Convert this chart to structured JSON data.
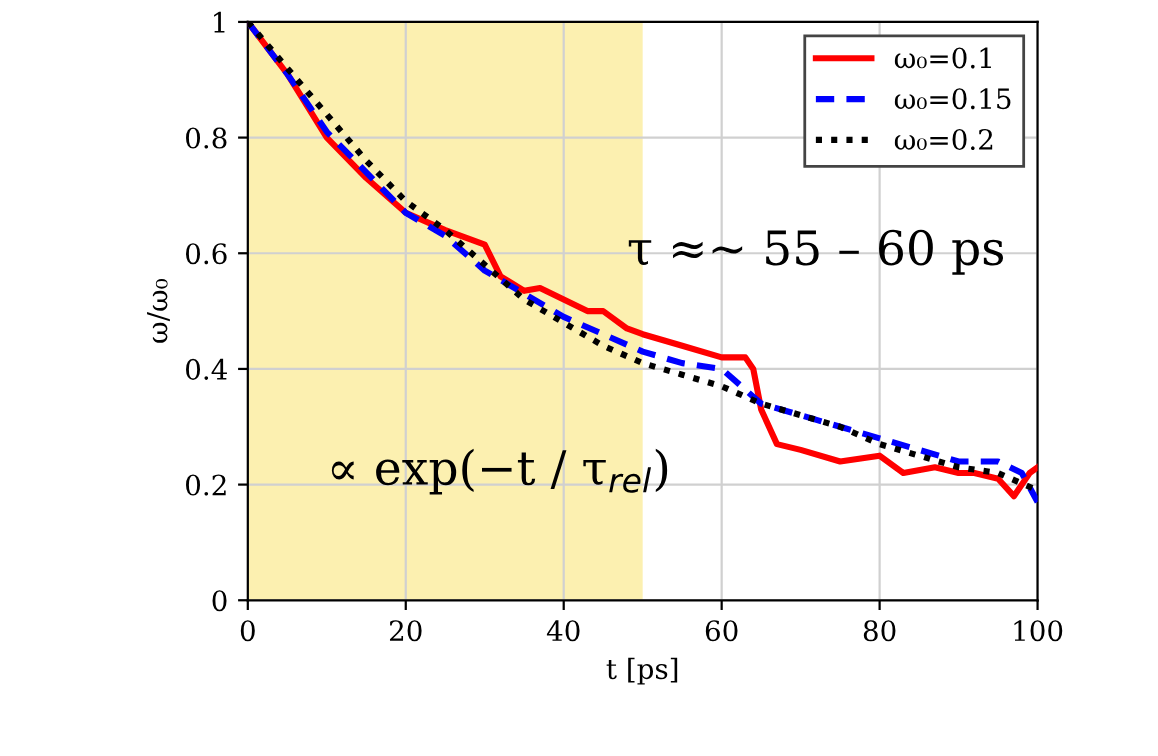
{
  "chart_data": {
    "type": "line",
    "xlabel": "t [ps]",
    "ylabel": "ω/ω₀",
    "xlim": [
      0,
      100
    ],
    "xticks": [
      0,
      20,
      40,
      60,
      80,
      100
    ],
    "ylim": [
      0,
      1
    ],
    "yticks": [
      0,
      0.2,
      0.4,
      0.6,
      0.8,
      1
    ],
    "grid": true,
    "legend": "top right",
    "bands": [
      {
        "axis": "x",
        "from": 0,
        "to": 50,
        "color": "#fcf0b0"
      }
    ],
    "annotations": [
      "τ ≈~ 55 – 60 ps",
      "∝ exp(−t / τ$_{rel}$)"
    ],
    "series": [
      {
        "name": "ω₀=0.1",
        "color": "#ff0000",
        "line_style": "solid",
        "x": [
          0,
          5,
          10,
          15,
          20,
          25,
          30,
          32,
          35,
          37,
          40,
          43,
          45,
          48,
          50,
          55,
          60,
          63,
          64,
          65,
          67,
          70,
          75,
          80,
          83,
          87,
          90,
          92,
          95,
          97,
          99,
          100
        ],
        "values": [
          1,
          0.91,
          0.8,
          0.73,
          0.67,
          0.64,
          0.615,
          0.56,
          0.535,
          0.54,
          0.52,
          0.5,
          0.5,
          0.47,
          0.46,
          0.44,
          0.42,
          0.42,
          0.4,
          0.33,
          0.27,
          0.26,
          0.24,
          0.25,
          0.22,
          0.23,
          0.22,
          0.22,
          0.21,
          0.18,
          0.22,
          0.23
        ]
      },
      {
        "name": "ω₀=0.15",
        "color": "#0000ff",
        "line_style": "dashed",
        "x": [
          0,
          5,
          10,
          15,
          20,
          25,
          30,
          35,
          40,
          45,
          50,
          55,
          60,
          65,
          70,
          75,
          80,
          85,
          90,
          95,
          98,
          100
        ],
        "values": [
          1,
          0.91,
          0.81,
          0.74,
          0.67,
          0.63,
          0.57,
          0.53,
          0.49,
          0.46,
          0.43,
          0.41,
          0.4,
          0.34,
          0.32,
          0.3,
          0.28,
          0.26,
          0.24,
          0.24,
          0.22,
          0.17
        ]
      },
      {
        "name": "ω₀=0.2",
        "color": "#000000",
        "line_style": "dotted",
        "x": [
          0,
          5,
          10,
          15,
          20,
          25,
          30,
          35,
          40,
          45,
          50,
          55,
          60,
          65,
          70,
          75,
          80,
          85,
          90,
          95,
          100
        ],
        "values": [
          1,
          0.92,
          0.84,
          0.76,
          0.69,
          0.64,
          0.58,
          0.52,
          0.48,
          0.44,
          0.41,
          0.39,
          0.37,
          0.34,
          0.32,
          0.3,
          0.27,
          0.25,
          0.23,
          0.22,
          0.19
        ]
      }
    ]
  }
}
